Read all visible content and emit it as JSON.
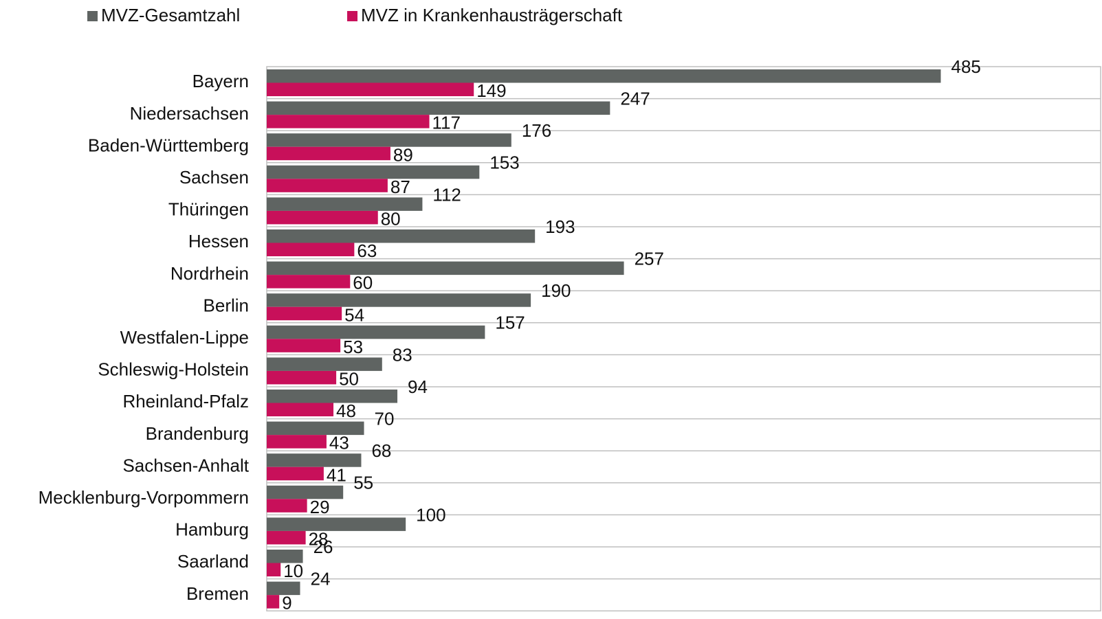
{
  "chart_data": {
    "type": "bar",
    "orientation": "horizontal",
    "categories": [
      "Bayern",
      "Niedersachsen",
      "Baden-Württemberg",
      "Sachsen",
      "Thüringen",
      "Hessen",
      "Nordrhein",
      "Berlin",
      "Westfalen-Lippe",
      "Schleswig-Holstein",
      "Rheinland-Pfalz",
      "Brandenburg",
      "Sachsen-Anhalt",
      "Mecklenburg-Vorpommern",
      "Hamburg",
      "Saarland",
      "Bremen"
    ],
    "series": [
      {
        "name": "MVZ-Gesamtzahl",
        "color": "#5f6462",
        "values": [
          485,
          247,
          176,
          153,
          112,
          193,
          257,
          190,
          157,
          83,
          94,
          70,
          68,
          55,
          100,
          26,
          24
        ]
      },
      {
        "name": "MVZ in Krankenhausträgerschaft",
        "color": "#c8105a",
        "values": [
          149,
          117,
          89,
          87,
          80,
          63,
          60,
          54,
          53,
          50,
          48,
          43,
          41,
          29,
          28,
          10,
          9
        ]
      }
    ],
    "xlim": [
      0,
      600
    ],
    "legend": "top-left"
  }
}
